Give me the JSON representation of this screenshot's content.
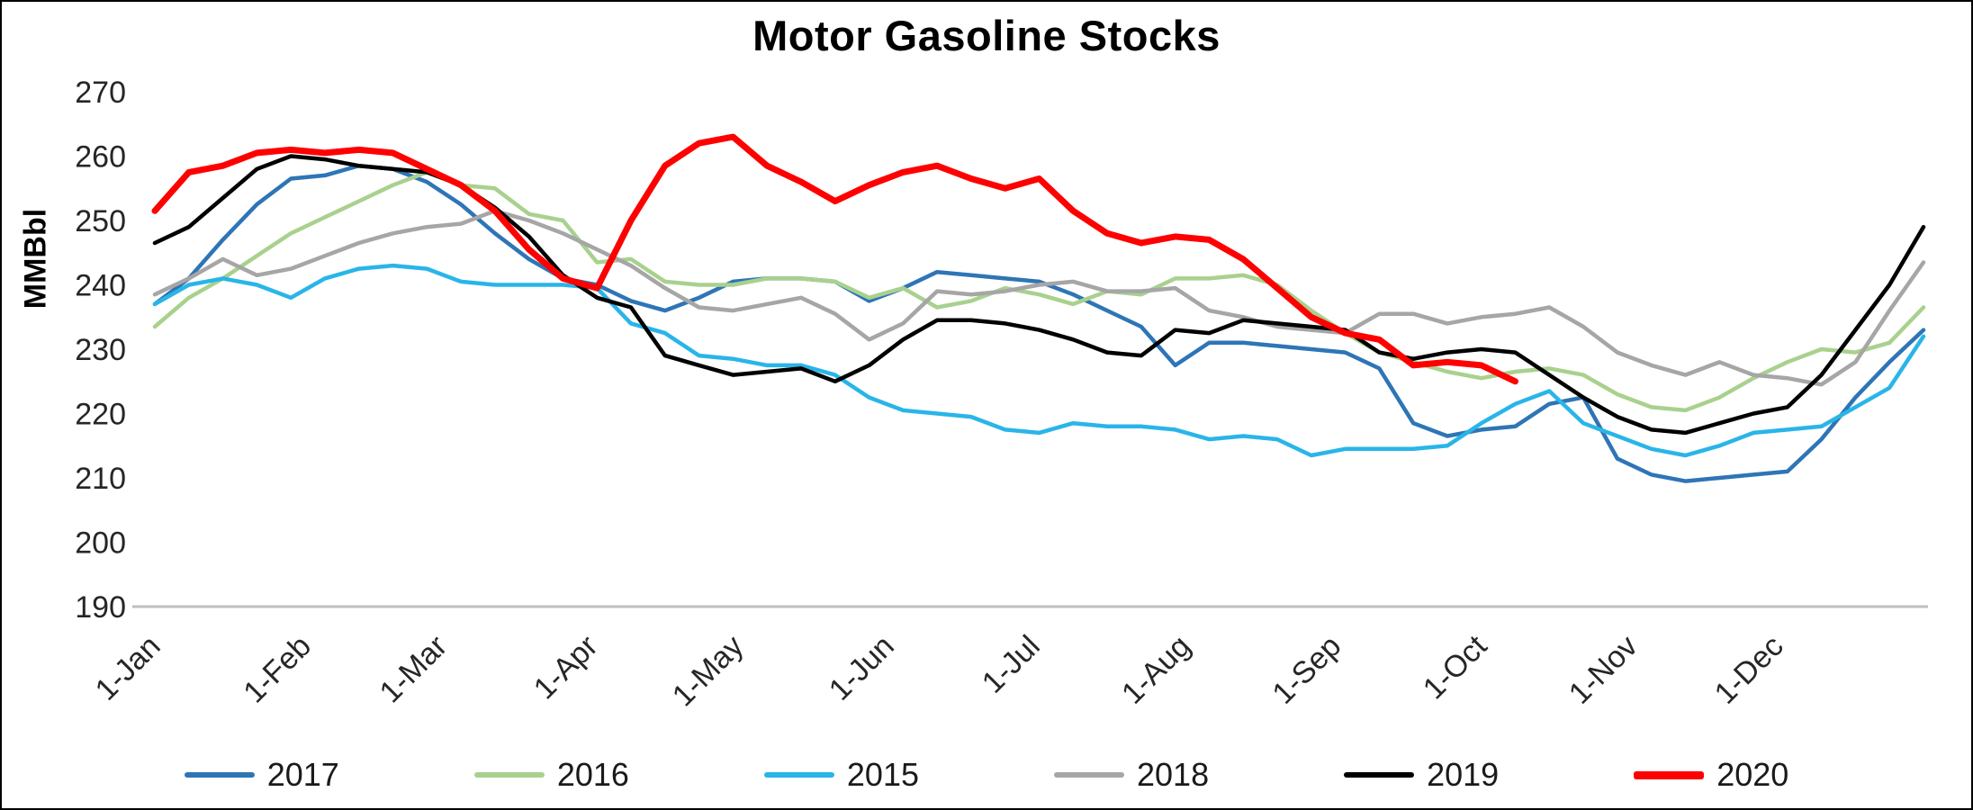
{
  "chart_data": {
    "type": "line",
    "title": "Motor Gasoline Stocks",
    "ylabel": "MMBbl",
    "ylim": [
      190,
      270
    ],
    "ytick_step": 10,
    "yticks": [
      190,
      200,
      210,
      220,
      230,
      240,
      250,
      260,
      270
    ],
    "x_tick_labels": [
      "1-Jan",
      "1-Feb",
      "1-Mar",
      "1-Apr",
      "1-May",
      "1-Jun",
      "1-Jul",
      "1-Aug",
      "1-Sep",
      "1-Oct",
      "1-Nov",
      "1-Dec"
    ],
    "x_unit": "weekly",
    "grid": false,
    "legend_position": "bottom",
    "axis_color": "#bfbfbf",
    "text_color": "#262626",
    "series": [
      {
        "name": "2017",
        "color": "#2e75b6",
        "line_width": 4.5,
        "values": [
          237,
          241,
          247,
          252.5,
          256.5,
          257,
          258.5,
          258,
          256,
          252.5,
          248,
          244,
          241,
          240,
          237.5,
          236,
          238,
          240.5,
          241,
          241,
          240.5,
          237.5,
          239.5,
          242,
          241.5,
          241,
          240.5,
          238.5,
          236,
          233.5,
          227.5,
          231,
          231,
          230.5,
          230,
          229.5,
          227,
          218.5,
          216.5,
          217.5,
          218,
          221.5,
          222.5,
          213,
          210.5,
          209.5,
          210,
          210.5,
          211,
          216,
          222.5,
          228,
          233
        ]
      },
      {
        "name": "2016",
        "color": "#a9d18e",
        "line_width": 4.5,
        "values": [
          233.5,
          238,
          241,
          244.5,
          248,
          250.5,
          253,
          255.5,
          257.5,
          255.5,
          255,
          251,
          250,
          243.5,
          244,
          240.5,
          240,
          240,
          241,
          241,
          240.5,
          238,
          239.5,
          236.5,
          237.5,
          239.5,
          238.5,
          237,
          239,
          238.5,
          241,
          241,
          241.5,
          240,
          236,
          232.5,
          229.5,
          228,
          226.5,
          225.5,
          226.5,
          227,
          226,
          223,
          221,
          220.5,
          222.5,
          225.5,
          228,
          230,
          229.5,
          231,
          236.5
        ]
      },
      {
        "name": "2015",
        "color": "#29b5e8",
        "line_width": 4.5,
        "values": [
          237,
          240,
          241,
          240,
          238,
          241,
          242.5,
          243,
          242.5,
          240.5,
          240,
          240,
          240,
          239.5,
          234,
          232.5,
          229,
          228.5,
          227.5,
          227.5,
          226,
          222.5,
          220.5,
          220,
          219.5,
          217.5,
          217,
          218.5,
          218,
          218,
          217.5,
          216,
          216.5,
          216,
          213.5,
          214.5,
          214.5,
          214.5,
          215,
          218.5,
          221.5,
          223.5,
          218.5,
          216.5,
          214.5,
          213.5,
          215,
          217,
          217.5,
          218,
          221,
          224,
          232
        ]
      },
      {
        "name": "2018",
        "color": "#a6a6a6",
        "line_width": 4.5,
        "values": [
          238.5,
          241,
          244,
          241.5,
          242.5,
          244.5,
          246.5,
          248,
          249,
          249.5,
          251.5,
          250,
          248,
          245.5,
          243,
          239.5,
          236.5,
          236,
          237,
          238,
          235.5,
          231.5,
          234,
          239,
          238.5,
          239,
          240,
          240.5,
          239,
          239,
          239.5,
          236,
          235,
          233.5,
          233,
          232.5,
          235.5,
          235.5,
          234,
          235,
          235.5,
          236.5,
          233.5,
          229.5,
          227.5,
          226,
          228,
          226,
          225.5,
          224.5,
          228,
          236,
          243.5
        ]
      },
      {
        "name": "2019",
        "color": "#000000",
        "line_width": 4.5,
        "values": [
          246.5,
          249,
          253.5,
          258,
          260,
          259.5,
          258.5,
          258,
          257.5,
          255.5,
          252,
          247.5,
          241.5,
          238,
          236.5,
          229,
          227.5,
          226,
          226.5,
          227,
          225,
          227.5,
          231.5,
          234.5,
          234.5,
          234,
          233,
          231.5,
          229.5,
          229,
          233,
          232.5,
          234.5,
          234,
          233.5,
          233,
          229.5,
          228.5,
          229.5,
          230,
          229.5,
          226,
          222.5,
          219.5,
          217.5,
          217,
          218.5,
          220,
          221,
          226,
          233,
          240,
          249
        ]
      },
      {
        "name": "2020",
        "color": "#ff0000",
        "line_width": 7,
        "values": [
          251.5,
          257.5,
          258.5,
          260.5,
          261,
          260.5,
          261,
          260.5,
          258,
          255.5,
          251.5,
          245.5,
          241,
          239.5,
          250,
          258.5,
          262,
          263,
          258.5,
          256,
          253,
          255.5,
          257.5,
          258.5,
          256.5,
          255,
          256.5,
          251.5,
          248,
          246.5,
          247.5,
          247,
          244,
          239.5,
          235,
          232.5,
          231.5,
          227.5,
          228,
          227.5,
          225
        ]
      }
    ]
  }
}
